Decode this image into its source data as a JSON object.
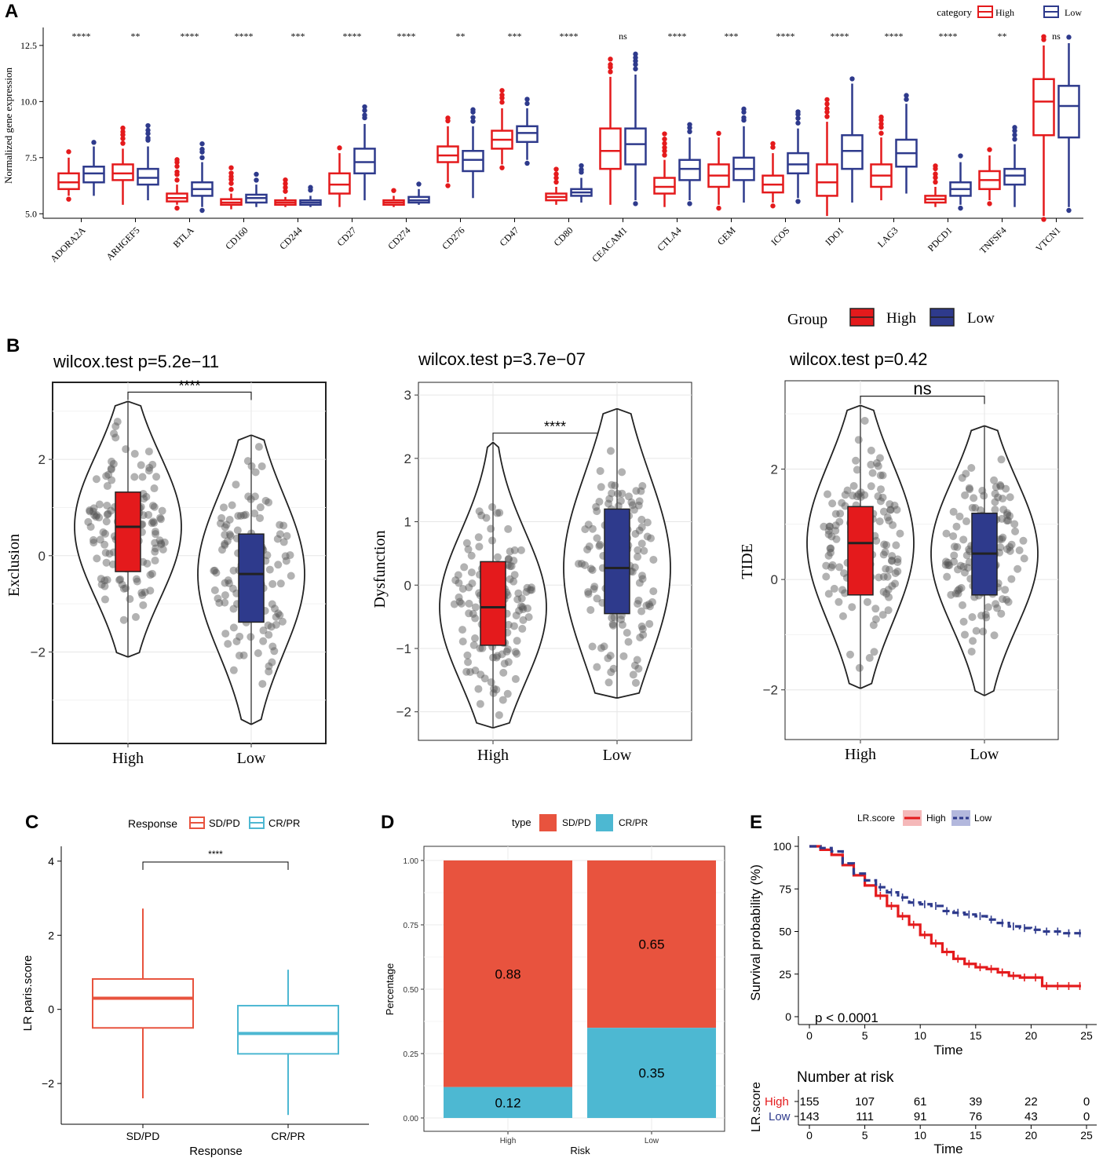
{
  "colors": {
    "high": "#e41a1c",
    "low": "#2e3a8c",
    "sdpd": "#e8533e",
    "crpr": "#4db8d2",
    "grid": "#ebebeb"
  },
  "panelA": {
    "label": "A",
    "legend": {
      "title": "category",
      "items": [
        "High",
        "Low"
      ]
    },
    "ylabel": "Normalized gene expression",
    "chart_data": {
      "type": "box",
      "ylim": [
        4.8,
        13.3
      ],
      "yticks": [
        5.0,
        7.5,
        10.0,
        12.5
      ],
      "ytick_labels": [
        "5.0",
        "7.5",
        "10.0",
        "12.5"
      ],
      "categories": [
        "ADORA2A",
        "ARHGEF5",
        "BTLA",
        "CD160",
        "CD244",
        "CD27",
        "CD274",
        "CD276",
        "CD47",
        "CD80",
        "CEACAM1",
        "CTLA4",
        "GEM",
        "ICOS",
        "IDO1",
        "LAG3",
        "PDCD1",
        "TNFSF4",
        "VTCN1"
      ],
      "significance": [
        "****",
        "**",
        "****",
        "****",
        "***",
        "****",
        "****",
        "**",
        "***",
        "****",
        "ns",
        "****",
        "***",
        "****",
        "****",
        "****",
        "****",
        "**",
        "ns"
      ],
      "series": [
        {
          "name": "High",
          "boxes": [
            [
              5.8,
              6.1,
              6.4,
              6.8,
              7.5
            ],
            [
              5.4,
              6.5,
              6.8,
              7.2,
              7.9
            ],
            [
              5.4,
              5.55,
              5.7,
              5.9,
              6.3
            ],
            [
              5.2,
              5.4,
              5.5,
              5.65,
              5.9
            ],
            [
              5.3,
              5.4,
              5.5,
              5.6,
              5.75
            ],
            [
              5.3,
              5.9,
              6.3,
              6.8,
              7.7
            ],
            [
              5.3,
              5.4,
              5.5,
              5.6,
              5.8
            ],
            [
              6.4,
              7.3,
              7.6,
              8.0,
              8.9
            ],
            [
              7.2,
              7.9,
              8.3,
              8.7,
              9.7
            ],
            [
              5.4,
              5.6,
              5.75,
              5.9,
              6.2
            ],
            [
              5.4,
              7.0,
              7.8,
              8.8,
              11.1
            ],
            [
              5.3,
              5.9,
              6.2,
              6.6,
              7.4
            ],
            [
              5.4,
              6.2,
              6.7,
              7.2,
              8.4
            ],
            [
              5.5,
              5.95,
              6.3,
              6.7,
              7.7
            ],
            [
              4.9,
              5.8,
              6.4,
              7.2,
              9.1
            ],
            [
              5.6,
              6.2,
              6.7,
              7.2,
              8.4
            ],
            [
              5.3,
              5.5,
              5.65,
              5.8,
              6.2
            ],
            [
              5.6,
              6.1,
              6.5,
              6.9,
              7.6
            ],
            [
              4.9,
              8.5,
              10.0,
              11.0,
              12.5
            ]
          ]
        },
        {
          "name": "Low",
          "boxes": [
            [
              5.8,
              6.4,
              6.8,
              7.1,
              8.0
            ],
            [
              5.6,
              6.3,
              6.6,
              7.0,
              8.0
            ],
            [
              5.3,
              5.8,
              6.1,
              6.4,
              7.3
            ],
            [
              5.3,
              5.5,
              5.7,
              5.85,
              6.3
            ],
            [
              5.3,
              5.4,
              5.5,
              5.6,
              5.8
            ],
            [
              5.6,
              6.8,
              7.3,
              7.9,
              9.0
            ],
            [
              5.4,
              5.5,
              5.6,
              5.75,
              6.1
            ],
            [
              5.7,
              6.9,
              7.4,
              7.8,
              8.9
            ],
            [
              7.4,
              8.2,
              8.6,
              8.9,
              9.7
            ],
            [
              5.5,
              5.8,
              5.95,
              6.1,
              6.6
            ],
            [
              5.6,
              7.2,
              8.1,
              8.8,
              11.2
            ],
            [
              5.6,
              6.5,
              7.0,
              7.4,
              8.4
            ],
            [
              5.5,
              6.5,
              7.0,
              7.5,
              8.9
            ],
            [
              5.7,
              6.8,
              7.2,
              7.7,
              8.8
            ],
            [
              5.5,
              7.0,
              7.8,
              8.5,
              10.8
            ],
            [
              5.9,
              7.1,
              7.7,
              8.3,
              9.9
            ],
            [
              5.4,
              5.8,
              6.1,
              6.4,
              7.3
            ],
            [
              5.3,
              6.3,
              6.7,
              7.0,
              8.1
            ],
            [
              5.3,
              8.4,
              9.8,
              10.7,
              12.6
            ]
          ]
        }
      ]
    }
  },
  "panelB": {
    "label": "B",
    "legend": {
      "title": "Group",
      "items": [
        "High",
        "Low"
      ]
    },
    "chart_data": [
      {
        "type": "violin+box+scatter",
        "title": "wilcox.test p=5.2e−11",
        "ylabel": "Exclusion",
        "categories": [
          "High",
          "Low"
        ],
        "sig": "****",
        "ylim": [
          -3.9,
          3.6
        ],
        "yticks": [
          -2,
          0,
          2
        ],
        "ytick_labels": [
          "−2",
          "0",
          "2"
        ],
        "boxes": [
          [
            -2.1,
            -0.33,
            0.6,
            1.32,
            3.2
          ],
          [
            -3.5,
            -1.38,
            -0.38,
            0.45,
            2.5
          ]
        ]
      },
      {
        "type": "violin+box+scatter",
        "title": "wilcox.test p=3.7e−07",
        "ylabel": "Dysfunction",
        "categories": [
          "High",
          "Low"
        ],
        "sig": "****",
        "ylim": [
          -2.45,
          3.2
        ],
        "yticks": [
          -2,
          -1,
          0,
          1,
          2,
          3
        ],
        "ytick_labels": [
          "−2",
          "−1",
          "0",
          "1",
          "2",
          "3"
        ],
        "boxes": [
          [
            -2.25,
            -0.95,
            -0.35,
            0.37,
            2.25
          ],
          [
            -1.78,
            -0.45,
            0.27,
            1.2,
            2.78
          ]
        ]
      },
      {
        "type": "violin+box+scatter",
        "title": "wilcox.test p=0.42",
        "ylabel": "TIDE",
        "categories": [
          "High",
          "Low"
        ],
        "sig": "ns",
        "ylim": [
          -2.9,
          3.6
        ],
        "yticks": [
          -2,
          0,
          2
        ],
        "ytick_labels": [
          "−2",
          "0",
          "2"
        ],
        "boxes": [
          [
            -1.97,
            -0.28,
            0.66,
            1.32,
            3.15
          ],
          [
            -2.1,
            -0.28,
            0.47,
            1.2,
            2.78
          ]
        ]
      }
    ]
  },
  "panelC": {
    "label": "C",
    "legend": {
      "title": "Response",
      "items": [
        "SD/PD",
        "CR/PR"
      ]
    },
    "chart_data": {
      "type": "box",
      "xlabel": "Response",
      "ylabel": "LR paris.score",
      "sig": "****",
      "categories": [
        "SD/PD",
        "CR/PR"
      ],
      "ylim": [
        -3.1,
        4.4
      ],
      "yticks": [
        -2,
        0,
        2,
        4
      ],
      "ytick_labels": [
        "−2",
        "0",
        "2",
        "4"
      ],
      "boxes": [
        [
          -2.4,
          -0.5,
          0.3,
          0.82,
          2.72
        ],
        [
          -2.85,
          -1.2,
          -0.65,
          0.1,
          1.07
        ]
      ]
    }
  },
  "panelD": {
    "label": "D",
    "legend": {
      "title": "type",
      "items": [
        "SD/PD",
        "CR/PR"
      ]
    },
    "chart_data": {
      "type": "stacked-bar",
      "xlabel": "Risk",
      "ylabel": "Percentage",
      "categories": [
        "High",
        "Low"
      ],
      "series": [
        {
          "name": "SD/PD",
          "values": [
            0.88,
            0.65
          ]
        },
        {
          "name": "CR/PR",
          "values": [
            0.12,
            0.35
          ]
        }
      ],
      "labels": [
        [
          "0.88",
          "0.12"
        ],
        [
          "0.65",
          "0.35"
        ]
      ],
      "ylim": [
        0,
        1
      ],
      "yticks": [
        0,
        0.25,
        0.5,
        0.75,
        1.0
      ],
      "ytick_labels": [
        "0.00",
        "0.25",
        "0.50",
        "0.75",
        "1.00"
      ]
    }
  },
  "panelE": {
    "label": "E",
    "legend": {
      "title": "LR.score",
      "items": [
        "High",
        "Low"
      ]
    },
    "chart_data": {
      "type": "line",
      "xlabel": "Time",
      "ylabel": "Survival probability (%)",
      "pvalue": "p < 0.0001",
      "xlim": [
        0,
        25
      ],
      "ylim": [
        0,
        100
      ],
      "xticks": [
        0,
        5,
        10,
        15,
        20,
        25
      ],
      "yticks": [
        0,
        25,
        50,
        75,
        100
      ],
      "series": [
        {
          "name": "High",
          "x": [
            0,
            1,
            2,
            3,
            4,
            5,
            6,
            7,
            8,
            9,
            10,
            11,
            12,
            13,
            14,
            15,
            16,
            17,
            18,
            19,
            20,
            21,
            22,
            23,
            24,
            24.5
          ],
          "y": [
            100,
            98,
            95,
            89,
            83,
            77,
            71,
            65,
            59,
            54,
            48,
            43,
            38,
            34,
            31,
            29,
            28,
            26,
            24,
            23,
            23,
            18,
            18,
            18,
            18,
            18
          ]
        },
        {
          "name": "Low",
          "x": [
            0,
            1,
            2,
            3,
            4,
            5,
            6,
            7,
            8,
            9,
            10,
            11,
            12,
            13,
            14,
            15,
            16,
            17,
            18,
            19,
            20,
            21,
            22,
            23,
            24,
            24.5
          ],
          "y": [
            100,
            99,
            97,
            90,
            84,
            80,
            76,
            73,
            70,
            67,
            66,
            65,
            62,
            61,
            60,
            59,
            57,
            55,
            53,
            52,
            51,
            50,
            50,
            49,
            49,
            49
          ]
        }
      ],
      "risk_table": {
        "title": "Number at risk",
        "ylabel": "LR.score",
        "xlabel": "Time",
        "rows": [
          {
            "name": "High",
            "values": [
              155,
              107,
              61,
              39,
              22,
              0
            ]
          },
          {
            "name": "Low",
            "values": [
              143,
              111,
              91,
              76,
              43,
              0
            ]
          }
        ],
        "times": [
          0,
          5,
          10,
          15,
          20,
          25
        ]
      }
    }
  }
}
